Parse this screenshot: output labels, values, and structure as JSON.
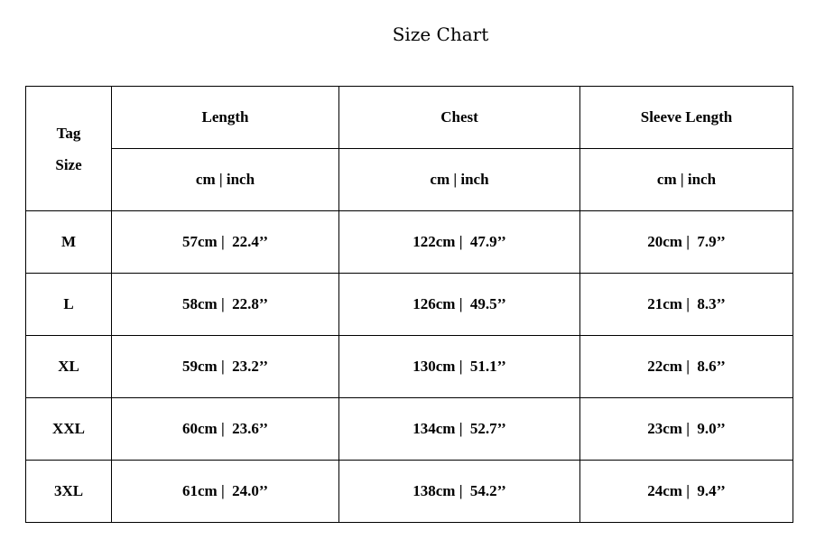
{
  "title": "Size Chart",
  "header": {
    "tag_size": "Tag\nSize",
    "columns": [
      "Length",
      "Chest",
      "Sleeve Length"
    ],
    "units": [
      "cm | inch",
      "cm | inch",
      "cm | inch"
    ]
  },
  "rows": [
    {
      "size": "M",
      "values": [
        "57cm |  22.4’’",
        "122cm |  47.9’’",
        "20cm |  7.9’’"
      ]
    },
    {
      "size": "L",
      "values": [
        "58cm |  22.8’’",
        "126cm |  49.5’’",
        "21cm |  8.3’’"
      ]
    },
    {
      "size": "XL",
      "values": [
        "59cm |  23.2’’",
        "130cm |  51.1’’",
        "22cm |  8.6’’"
      ]
    },
    {
      "size": "XXL",
      "values": [
        "60cm |  23.6’’",
        "134cm |  52.7’’",
        "23cm |  9.0’’"
      ]
    },
    {
      "size": "3XL",
      "values": [
        "61cm |  24.0’’",
        "138cm |  54.2’’",
        "24cm |  9.4’’"
      ]
    }
  ]
}
